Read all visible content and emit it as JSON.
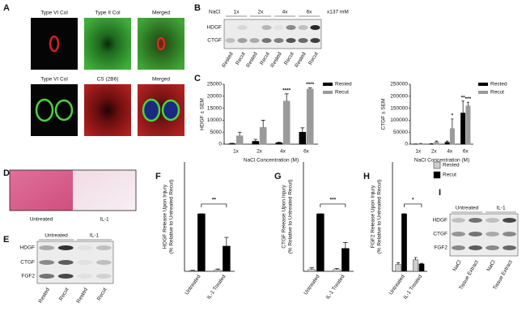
{
  "panel_a": {
    "label": "A",
    "images": [
      [
        "Type VI Col",
        "Type II Col",
        "Merged"
      ],
      [
        "Type VI Col",
        "CS (2B6)",
        "Merged"
      ]
    ]
  },
  "panel_b": {
    "label": "B",
    "header": "NaCl",
    "concentrations": [
      "1x",
      "2x",
      "4x",
      "6x"
    ],
    "unit": "x137 mM",
    "rows": [
      "HDGF",
      "CTGF"
    ],
    "lanes": [
      "Rested",
      "Recut",
      "Rested",
      "Recut",
      "Rested",
      "Recut",
      "Rested",
      "Recut"
    ]
  },
  "panel_d": {
    "label": "D",
    "images": [
      "Untreated",
      "IL-1"
    ]
  },
  "panel_e": {
    "label": "E",
    "groups": [
      "Untreated",
      "IL-1"
    ],
    "rows": [
      "HDGF",
      "CTGF",
      "FGF2"
    ],
    "lanes": [
      "Rested",
      "Recut",
      "Rested",
      "Recut"
    ]
  },
  "panel_i": {
    "label": "I",
    "groups": [
      "Untreated",
      "IL-1"
    ],
    "rows": [
      "HDGF",
      "CTGF",
      "FGF2"
    ],
    "lanes": [
      "NaCl",
      "Tissue Extract",
      "NaCl",
      "Tissue Extract"
    ]
  },
  "chart_data": [
    {
      "type": "bar",
      "panel": "C",
      "ylabel": "HDGF ± SEM",
      "xlabel": "NaCl Concentration (M)",
      "categories": [
        "1x",
        "2x",
        "4x",
        "6x"
      ],
      "ylim": [
        0,
        25000
      ],
      "yticks": [
        0,
        5000,
        10000,
        15000,
        20000,
        25000
      ],
      "series": [
        {
          "name": "Rested",
          "color": "#000000",
          "values": [
            200,
            1200,
            600,
            5000
          ],
          "errors": [
            200,
            800,
            300,
            1800
          ]
        },
        {
          "name": "Recut",
          "color": "#9a9a9a",
          "values": [
            3500,
            7000,
            18000,
            23000
          ],
          "errors": [
            1500,
            3000,
            3000,
            500
          ]
        }
      ],
      "annotations": [
        "****",
        "****"
      ],
      "legend": "upper right"
    },
    {
      "type": "bar",
      "ylabel": "CTGF ± SEM",
      "xlabel": "NaCl Concentration (M)",
      "categories": [
        "1x",
        "2x",
        "4x",
        "6x"
      ],
      "ylim": [
        0,
        250000
      ],
      "yticks": [
        0,
        50000,
        100000,
        150000,
        200000,
        250000
      ],
      "series": [
        {
          "name": "Rested",
          "color": "#000000",
          "values": [
            500,
            1000,
            8000,
            130000
          ],
          "errors": [
            500,
            1000,
            5000,
            50000
          ]
        },
        {
          "name": "Recut",
          "color": "#9a9a9a",
          "values": [
            2000,
            10000,
            65000,
            160000
          ],
          "errors": [
            1000,
            3000,
            40000,
            15000
          ]
        }
      ],
      "annotations": [
        "*",
        "**",
        "***"
      ],
      "legend": "upper right"
    },
    {
      "type": "bar",
      "panel": "F",
      "ylabel": [
        "HDGF Release Upon Injury",
        "(% Relative to Untreated Recut)"
      ],
      "categories": [
        "Untreated",
        "IL-1 Treated"
      ],
      "ylim": [
        0,
        190
      ],
      "series": [
        {
          "color": "#dddddd",
          "values": [
            1,
            2
          ],
          "errors": [
            1,
            2
          ]
        },
        {
          "color": "#000000",
          "values": [
            100,
            44
          ],
          "errors": [
            0,
            15
          ]
        }
      ],
      "significance": "**"
    },
    {
      "type": "bar",
      "panel": "G",
      "ylabel": [
        "CTGF Release Upon Injury",
        "(% Relative to Untreated Recut)"
      ],
      "categories": [
        "Untreated",
        "IL-1 Treated"
      ],
      "ylim": [
        0,
        190
      ],
      "series": [
        {
          "color": "#dddddd",
          "values": [
            3,
            3
          ],
          "errors": [
            3,
            2
          ]
        },
        {
          "color": "#000000",
          "values": [
            100,
            40
          ],
          "errors": [
            0,
            10
          ]
        }
      ],
      "significance": "***"
    },
    {
      "type": "bar",
      "panel": "H",
      "ylabel": [
        "FGF2 Release Upon Injury",
        "(% Relative to Untreated Recut)"
      ],
      "categories": [
        "Untreated",
        "IL-1 Treated"
      ],
      "ylim": [
        0,
        190
      ],
      "series": [
        {
          "name": "Rested",
          "color": "#cccccc",
          "values": [
            12,
            20
          ],
          "errors": [
            3,
            4
          ]
        },
        {
          "name": "Recut",
          "color": "#000000",
          "values": [
            100,
            13
          ],
          "errors": [
            0,
            1
          ]
        }
      ],
      "significance": "*",
      "legend": "right"
    }
  ]
}
